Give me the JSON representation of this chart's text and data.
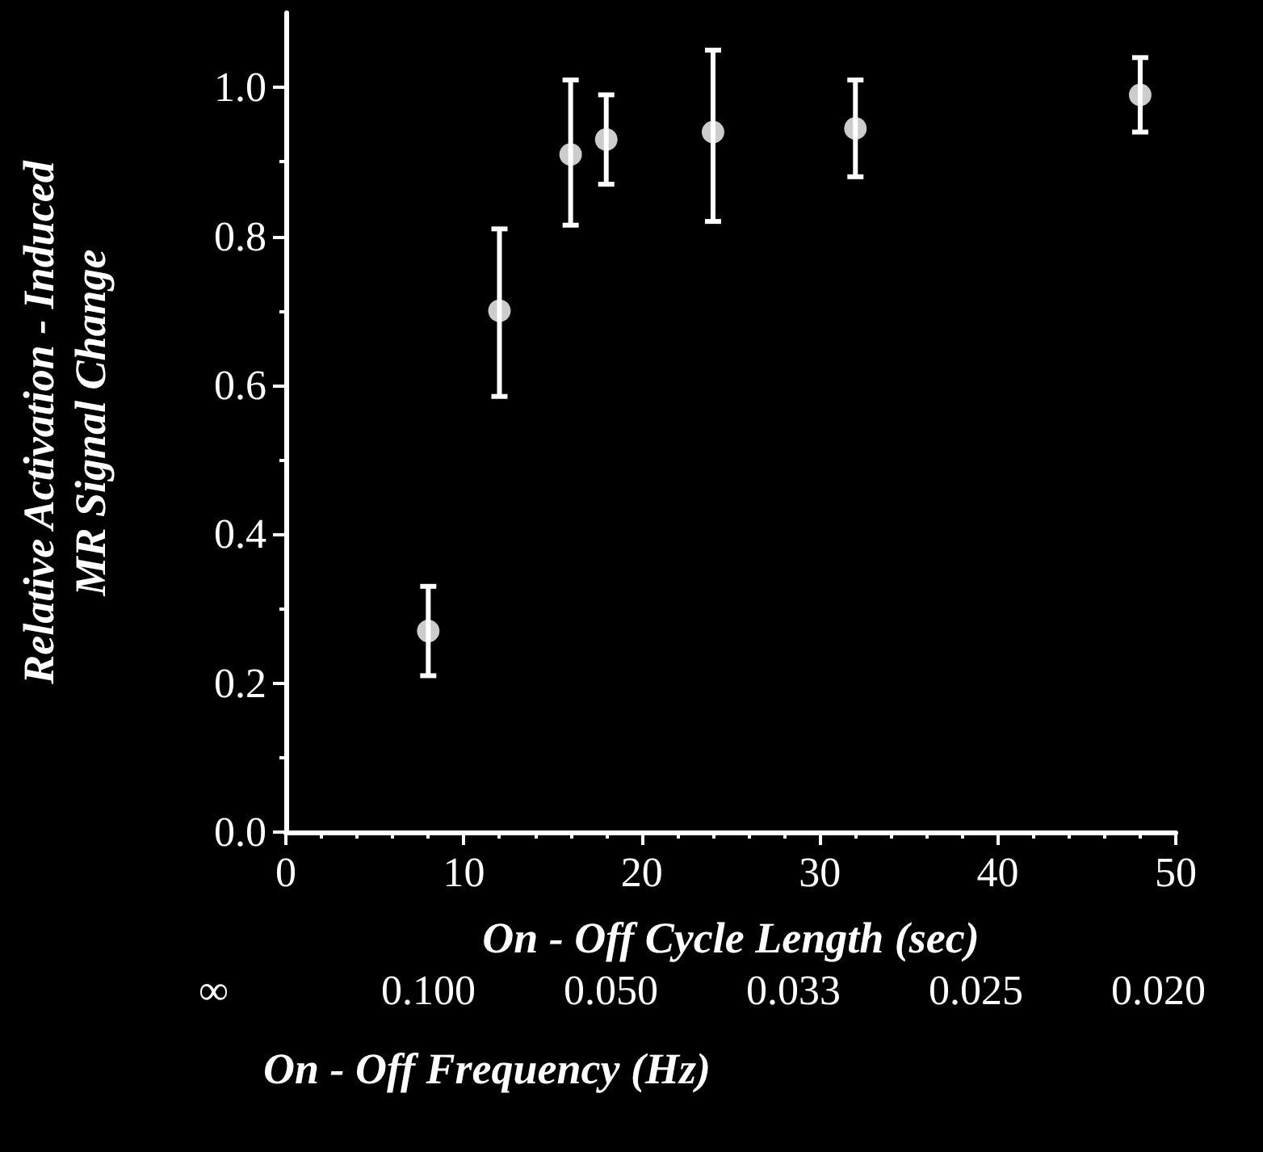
{
  "chart_data": {
    "type": "scatter",
    "xlabel": "On - Off Cycle Length (sec)",
    "x2label": "On - Off Frequency (Hz)",
    "ylabel": "Relative Activation - Induced\nMR Signal Change",
    "x": [
      8,
      12,
      16,
      18,
      24,
      32,
      48
    ],
    "series": [
      {
        "color": "#ffffff",
        "values": [
          0.27,
          0.7,
          0.91,
          0.93,
          0.94,
          0.945,
          0.99
        ],
        "errors": [
          [
            0.21,
            0.33
          ],
          [
            0.585,
            0.81
          ],
          [
            0.815,
            1.01
          ],
          [
            0.87,
            0.99
          ],
          [
            0.82,
            1.05
          ],
          [
            0.88,
            1.01
          ],
          [
            0.94,
            1.04
          ]
        ]
      }
    ],
    "xlim": [
      0,
      50
    ],
    "xticks": [
      0,
      10,
      20,
      30,
      40,
      50
    ],
    "annotations": [
      "∞",
      "0.100",
      "0.050",
      "0.033",
      "0.025",
      "0.020"
    ],
    "ylim": [
      0,
      1.1
    ],
    "yticks": [
      {
        "value": 0,
        "label": "0.0"
      },
      {
        "value": 0.2,
        "label": "0.2"
      },
      {
        "value": 0.4,
        "label": "0.4"
      },
      {
        "value": 0.6,
        "label": "0.6"
      },
      {
        "value": 0.8,
        "label": "0.8"
      },
      {
        "value": 1.0,
        "label": "1.0"
      }
    ],
    "marker": "circle"
  }
}
